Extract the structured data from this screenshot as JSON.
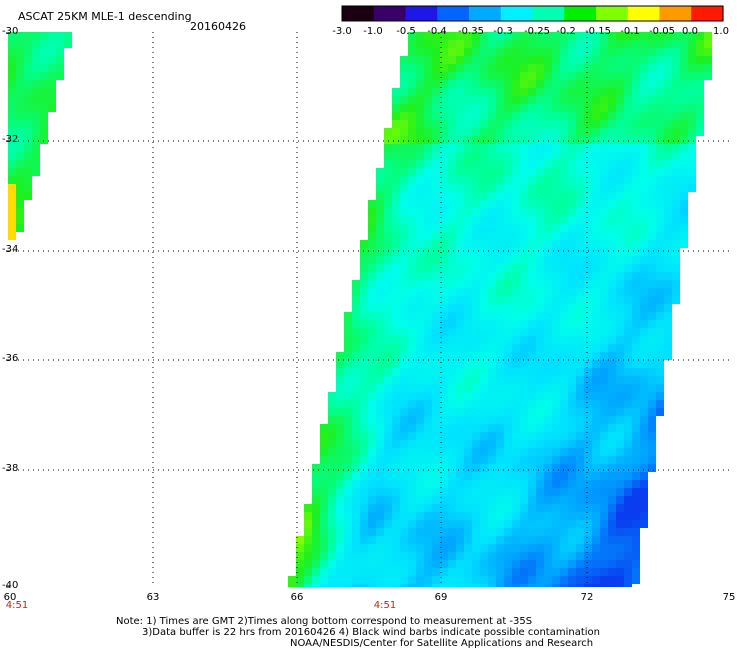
{
  "header": {
    "title": "ASCAT 25KM MLE-1 descending",
    "date": "20160426"
  },
  "colorbar": {
    "labels": [
      "-3.0",
      "-1.0",
      "-0.5",
      "-0.4",
      "-0.35",
      "-0.3",
      "-0.25",
      "-0.2",
      "-0.15",
      "-0.1",
      "-0.05",
      "0.0",
      "1.0"
    ],
    "colors": [
      "#1a0010",
      "#3a006a",
      "#1d18e8",
      "#0066ff",
      "#00aaff",
      "#00f0ff",
      "#00ffb0",
      "#00f000",
      "#80ff00",
      "#ffff00",
      "#ff9900",
      "#ff1a00"
    ]
  },
  "axes": {
    "lat_labels": [
      "-30",
      "-32",
      "-34",
      "-36",
      "-38",
      "-40"
    ],
    "lon_labels": [
      "60",
      "63",
      "66",
      "69",
      "72",
      "75"
    ],
    "time_labels": [
      "4:51",
      "4:51"
    ]
  },
  "notes": {
    "line1": "Note: 1) Times are GMT 2)Times along bottom correspond to measurement at -35S",
    "line2": "3)Data buffer is 22 hrs from 20160426 4) Black wind barbs indicate possible contamination",
    "line3": "NOAA/NESDIS/Center for Satellite Applications and Research"
  }
}
